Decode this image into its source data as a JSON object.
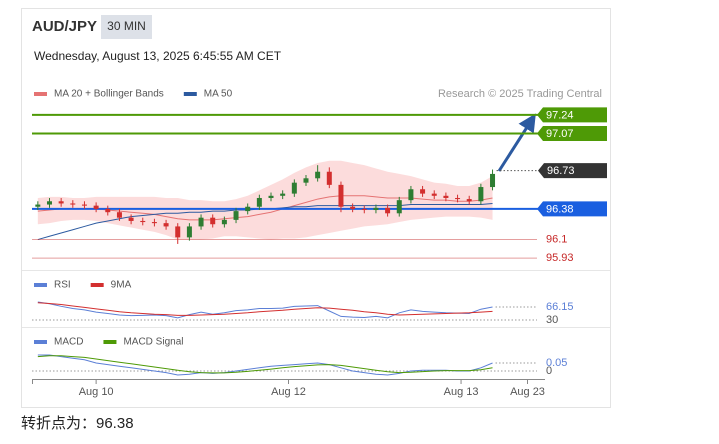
{
  "header": {
    "symbol": "AUD/JPY",
    "timeframe": "30 MIN",
    "datetime": "Wednesday, August 13, 2025 6:45:55 AM CET",
    "source": "Research © 2025 Trading Central"
  },
  "footer": "转折点为：96.38",
  "chart_data": [
    {
      "type": "candlestick",
      "candles": {
        "up_color": "#2e7d32",
        "down_color": "#d32f2f",
        "open": [
          96.4,
          96.42,
          96.45,
          96.43,
          96.42,
          96.41,
          96.38,
          96.35,
          96.3,
          96.27,
          96.26,
          96.25,
          96.22,
          96.12,
          96.22,
          96.3,
          96.24,
          96.28,
          96.36,
          96.4,
          96.48,
          96.5,
          96.52,
          96.62,
          96.66,
          96.72,
          96.6,
          96.4,
          96.38,
          96.37,
          96.39,
          96.34,
          96.46,
          96.56,
          96.52,
          96.5,
          96.48,
          96.47,
          96.45,
          96.58
        ],
        "high": [
          96.45,
          96.48,
          96.48,
          96.46,
          96.45,
          96.44,
          96.41,
          96.38,
          96.33,
          96.3,
          96.29,
          96.28,
          96.25,
          96.25,
          96.33,
          96.33,
          96.31,
          96.39,
          96.43,
          96.51,
          96.53,
          96.55,
          96.65,
          96.69,
          96.78,
          96.76,
          96.63,
          96.43,
          96.41,
          96.42,
          96.42,
          96.49,
          96.59,
          96.59,
          96.55,
          96.53,
          96.51,
          96.5,
          96.61,
          96.74
        ],
        "low": [
          96.37,
          96.39,
          96.4,
          96.39,
          96.38,
          96.35,
          96.32,
          96.27,
          96.24,
          96.23,
          96.22,
          96.19,
          96.06,
          96.09,
          96.19,
          96.21,
          96.21,
          96.25,
          96.33,
          96.37,
          96.45,
          96.47,
          96.49,
          96.59,
          96.63,
          96.57,
          96.35,
          96.35,
          96.34,
          96.34,
          96.31,
          96.31,
          96.43,
          96.49,
          96.47,
          96.45,
          96.44,
          96.42,
          96.42,
          96.55
        ],
        "close": [
          96.42,
          96.45,
          96.43,
          96.42,
          96.41,
          96.38,
          96.35,
          96.3,
          96.27,
          96.26,
          96.25,
          96.22,
          96.12,
          96.22,
          96.3,
          96.24,
          96.28,
          96.36,
          96.4,
          96.48,
          96.5,
          96.52,
          96.62,
          96.66,
          96.72,
          96.6,
          96.4,
          96.38,
          96.37,
          96.39,
          96.34,
          96.46,
          96.56,
          96.52,
          96.5,
          96.48,
          96.47,
          96.45,
          96.58,
          96.7
        ]
      },
      "bands": {
        "color": "#fbd3d3",
        "upper": [
          96.48,
          96.49,
          96.49,
          96.48,
          96.48,
          96.49,
          96.49,
          96.49,
          96.49,
          96.49,
          96.49,
          96.48,
          96.48,
          96.46,
          96.46,
          96.45,
          96.45,
          96.47,
          96.5,
          96.55,
          96.6,
          96.65,
          96.71,
          96.76,
          96.8,
          96.82,
          96.82,
          96.8,
          96.78,
          96.75,
          96.72,
          96.7,
          96.68,
          96.65,
          96.62,
          96.61,
          96.59,
          96.59,
          96.62,
          96.68
        ],
        "lower": [
          96.24,
          96.25,
          96.27,
          96.28,
          96.28,
          96.27,
          96.25,
          96.23,
          96.21,
          96.19,
          96.17,
          96.14,
          96.1,
          96.1,
          96.1,
          96.11,
          96.13,
          96.13,
          96.12,
          96.11,
          96.1,
          96.11,
          96.11,
          96.12,
          96.14,
          96.16,
          96.18,
          96.2,
          96.22,
          96.23,
          96.24,
          96.26,
          96.28,
          96.29,
          96.3,
          96.31,
          96.31,
          96.31,
          96.3,
          96.28
        ]
      },
      "series": [
        {
          "name": "MA 20 + Bollinger Bands",
          "color": "#e57373",
          "values": [
            96.36,
            96.37,
            96.38,
            96.38,
            96.38,
            96.38,
            96.37,
            96.36,
            96.35,
            96.34,
            96.33,
            96.31,
            96.29,
            96.28,
            96.28,
            96.28,
            96.29,
            96.3,
            96.31,
            96.33,
            96.35,
            96.38,
            96.41,
            96.44,
            96.47,
            96.49,
            96.5,
            96.5,
            96.5,
            96.49,
            96.48,
            96.48,
            96.48,
            96.47,
            96.46,
            96.46,
            96.45,
            96.45,
            96.46,
            96.48
          ]
        },
        {
          "name": "MA 50",
          "color": "#2c5aa0",
          "values": [
            96.1,
            96.13,
            96.16,
            96.19,
            96.22,
            96.25,
            96.27,
            96.29,
            96.31,
            96.32,
            96.33,
            96.34,
            96.34,
            96.35,
            96.35,
            96.36,
            96.36,
            96.37,
            96.37,
            96.38,
            96.38,
            96.39,
            96.4,
            96.4,
            96.41,
            96.41,
            96.41,
            96.41,
            96.41,
            96.41,
            96.41,
            96.41,
            96.42,
            96.42,
            96.42,
            96.42,
            96.42,
            96.42,
            96.42,
            96.43
          ]
        }
      ],
      "levels": [
        {
          "value": 97.24,
          "color": "#4e9a06",
          "kind": "tag"
        },
        {
          "value": 97.07,
          "color": "#4e9a06",
          "kind": "tag"
        },
        {
          "value": 96.73,
          "color": "#333333",
          "kind": "dotted-tag"
        },
        {
          "value": 96.38,
          "color": "#1a5fe0",
          "kind": "tag"
        },
        {
          "value": 96.1,
          "color": "#c62828",
          "kind": "text"
        },
        {
          "value": 95.93,
          "color": "#c62828",
          "kind": "text"
        }
      ],
      "ylim": [
        95.84,
        97.33
      ],
      "xlim": [
        -0.5,
        43.5
      ]
    },
    {
      "type": "line",
      "series": [
        {
          "name": "RSI",
          "color": "#5b7fd6",
          "values": [
            80,
            75,
            68,
            62,
            58,
            52,
            48,
            44,
            42,
            43,
            44,
            42,
            36,
            45,
            52,
            46,
            50,
            56,
            58,
            62,
            62,
            63,
            68,
            69,
            70,
            55,
            40,
            38,
            37,
            40,
            36,
            50,
            58,
            54,
            52,
            50,
            49,
            48,
            60,
            66.15
          ]
        },
        {
          "name": "9MA",
          "color": "#d32f2f",
          "values": [
            78,
            76,
            73,
            69,
            65,
            61,
            57,
            53,
            50,
            48,
            46,
            45,
            43,
            43,
            44,
            45,
            46,
            48,
            50,
            53,
            55,
            57,
            60,
            62,
            64,
            63,
            60,
            57,
            53,
            50,
            46,
            44,
            45,
            46,
            47,
            48,
            49,
            50,
            52,
            54
          ]
        }
      ],
      "ylim": [
        10,
        100
      ],
      "yticks": [
        30
      ],
      "xlim": [
        -0.5,
        43.5
      ]
    },
    {
      "type": "line",
      "series": [
        {
          "name": "MACD",
          "color": "#5b7fd6",
          "values": [
            0.1,
            0.1,
            0.09,
            0.08,
            0.07,
            0.05,
            0.04,
            0.03,
            0.02,
            0.01,
            0.0,
            -0.01,
            -0.025,
            -0.02,
            -0.01,
            -0.015,
            -0.01,
            0.0,
            0.01,
            0.02,
            0.03,
            0.035,
            0.04,
            0.045,
            0.05,
            0.04,
            0.02,
            0.0,
            -0.01,
            -0.02,
            -0.025,
            -0.015,
            0.0,
            0.005,
            0.005,
            0.005,
            0.0,
            0.0,
            0.02,
            0.05
          ]
        },
        {
          "name": "MACD Signal",
          "color": "#4e9a06",
          "values": [
            0.09,
            0.095,
            0.095,
            0.09,
            0.085,
            0.075,
            0.065,
            0.055,
            0.045,
            0.035,
            0.025,
            0.015,
            0.005,
            -0.005,
            -0.01,
            -0.012,
            -0.012,
            -0.008,
            -0.002,
            0.005,
            0.012,
            0.02,
            0.027,
            0.033,
            0.038,
            0.04,
            0.035,
            0.025,
            0.015,
            0.005,
            -0.005,
            -0.01,
            -0.008,
            -0.004,
            0.0,
            0.002,
            0.002,
            0.002,
            0.008,
            0.02
          ]
        }
      ],
      "ylim": [
        -0.05,
        0.12
      ],
      "yticks": [
        0
      ],
      "xlim": [
        -0.5,
        43.5
      ],
      "xticks": [
        {
          "value": 5,
          "label": "Aug 10"
        },
        {
          "value": 21.5,
          "label": "Aug 12"
        },
        {
          "value": 36.3,
          "label": "Aug 13"
        },
        {
          "value": 42,
          "label": "Aug 23"
        }
      ]
    }
  ]
}
